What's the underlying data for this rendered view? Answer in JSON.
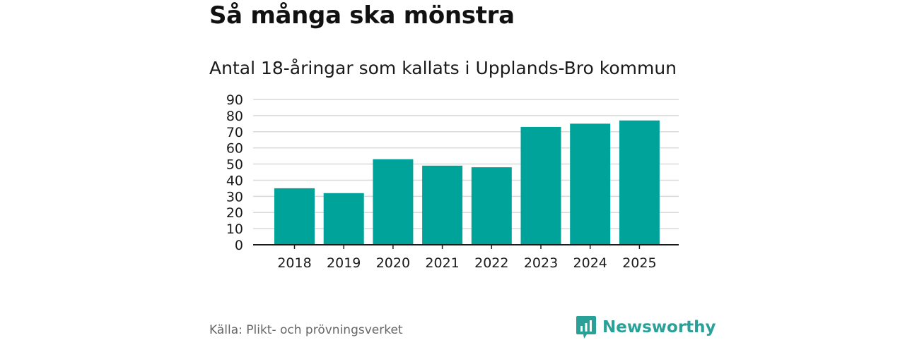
{
  "header": {
    "title": "Så många ska mönstra",
    "subtitle": "Antal 18-åringar som kallats i Upplands-Bro kommun"
  },
  "footer": {
    "source": "Källa: Plikt- och prövningsverket",
    "brand": "Newsworthy",
    "brand_icon": "newsworthy-logo-icon"
  },
  "colors": {
    "bar": "#00a39a",
    "grid": "#d9d9d9",
    "axis": "#1a1a1a",
    "brand": "#2aa198"
  },
  "chart_data": {
    "type": "bar",
    "title": "Antal 18-åringar som kallats i Upplands-Bro kommun",
    "xlabel": "",
    "ylabel": "",
    "categories": [
      "2018",
      "2019",
      "2020",
      "2021",
      "2022",
      "2023",
      "2024",
      "2025"
    ],
    "values": [
      35,
      32,
      53,
      49,
      48,
      73,
      75,
      77
    ],
    "ylim": [
      0,
      90
    ],
    "yticks": [
      0,
      10,
      20,
      30,
      40,
      50,
      60,
      70,
      80,
      90
    ],
    "grid": true
  }
}
